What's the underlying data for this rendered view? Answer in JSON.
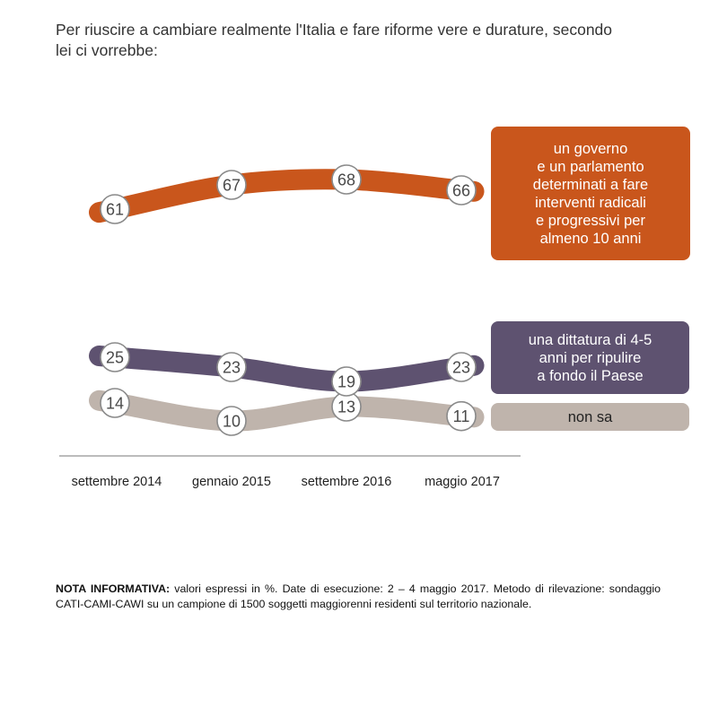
{
  "title": "Per riuscire a cambiare realmente l'Italia e fare riforme vere e durature, secondo lei ci vorrebbe:",
  "note": {
    "label": "NOTA INFORMATIVA:",
    "text": " valori espressi in %. Date di esecuzione: 2 – 4 maggio 2017. Metodo di rilevazione: sondaggio CATI-CAMI-CAWI su un campione di 1500 soggetti maggiorenni residenti sul territorio nazionale."
  },
  "chart_data": {
    "type": "line",
    "x": [
      "settembre 2014",
      "gennaio 2015",
      "settembre 2016",
      "maggio 2017"
    ],
    "series": [
      {
        "name": "un governo\ne un parlamento\ndeterminati a fare\ninterventi radicali\ne progressivi per\nalmeno 10 anni",
        "values": [
          61,
          67,
          68,
          66
        ],
        "color": "#c9561c"
      },
      {
        "name": "una dittatura di 4-5\nanni per ripulire\na fondo il Paese",
        "values": [
          25,
          23,
          19,
          23
        ],
        "color": "#5e5270"
      },
      {
        "name": "non sa",
        "values": [
          14,
          10,
          13,
          11
        ],
        "color": "#bfb4ac"
      }
    ],
    "grid": false,
    "legend": "right",
    "axis_line_color": "#7a7a7a"
  }
}
